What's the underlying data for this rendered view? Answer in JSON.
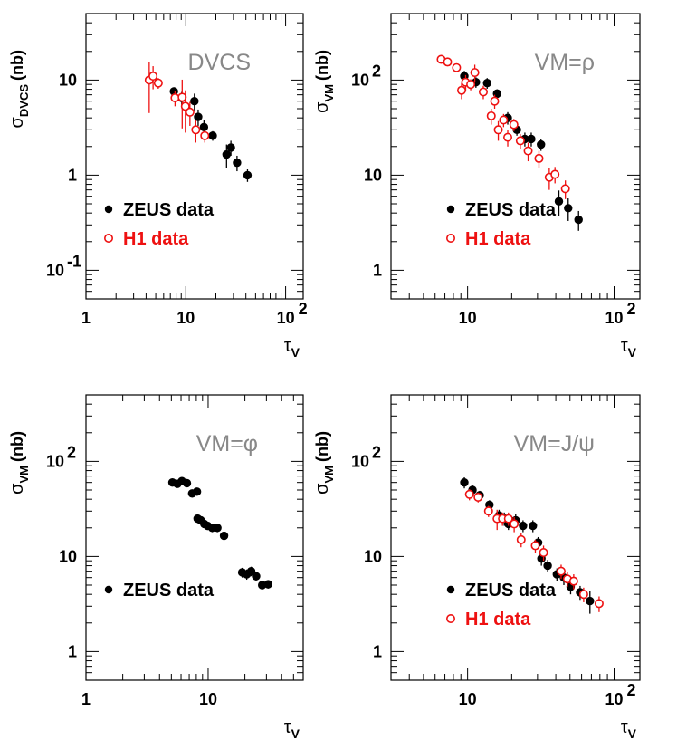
{
  "chart_data": [
    {
      "type": "scatter",
      "log_x": true,
      "log_y": true,
      "xlabel": "τV",
      "ylabel": "σDVCS (nb)",
      "annotation": "DVCS",
      "xlim": [
        1,
        150
      ],
      "ylim": [
        0.05,
        50
      ],
      "x_ticks": [
        {
          "v": 1,
          "t": "1"
        },
        {
          "v": 10,
          "t": "10"
        },
        {
          "v": 100,
          "t": "10",
          "sup": "2"
        }
      ],
      "y_ticks": [
        {
          "v": 0.1,
          "t": "10",
          "sup": "-1"
        },
        {
          "v": 1,
          "t": "1"
        },
        {
          "v": 10,
          "t": "10"
        }
      ],
      "series": [
        {
          "name": "ZEUS data",
          "color": "#000000",
          "marker": "filled",
          "points": [
            [
              7.6,
              7.6,
              0.8
            ],
            [
              9.1,
              6.5,
              1.0
            ],
            [
              12.2,
              6.0,
              1.2
            ],
            [
              13.3,
              4.1,
              0.8
            ],
            [
              15.2,
              3.2,
              0.6
            ],
            [
              18.6,
              2.6,
              0.3
            ],
            [
              25.6,
              1.65,
              0.45
            ],
            [
              28.3,
              1.95,
              0.35
            ],
            [
              32.6,
              1.35,
              0.25
            ],
            [
              41.5,
              1.0,
              0.15
            ]
          ]
        },
        {
          "name": "H1 data",
          "color": "#ee1111",
          "marker": "open",
          "points": [
            [
              4.3,
              10.0,
              5.5
            ],
            [
              4.7,
              11.0,
              3.0
            ],
            [
              5.3,
              9.3,
              1.2
            ],
            [
              7.8,
              6.5,
              1.2
            ],
            [
              9.2,
              6.6,
              3.5
            ],
            [
              9.9,
              5.3,
              2.5
            ],
            [
              11.0,
              4.6,
              1.3
            ],
            [
              12.6,
              3.0,
              0.8
            ],
            [
              15.5,
              2.6,
              0.4
            ]
          ]
        }
      ]
    },
    {
      "type": "scatter",
      "log_x": true,
      "log_y": true,
      "xlabel": "τV",
      "ylabel": "σVM (nb)",
      "annotation": "VM=ρ",
      "xlim": [
        3,
        150
      ],
      "ylim": [
        0.5,
        500
      ],
      "x_ticks": [
        {
          "v": 10,
          "t": "10"
        },
        {
          "v": 100,
          "t": "10",
          "sup": "2"
        }
      ],
      "y_ticks": [
        {
          "v": 1,
          "t": "1"
        },
        {
          "v": 10,
          "t": "10"
        },
        {
          "v": 100,
          "t": "10",
          "sup": "2"
        }
      ],
      "series": [
        {
          "name": "ZEUS data",
          "color": "#000000",
          "marker": "filled",
          "points": [
            [
              9.5,
              110,
              15
            ],
            [
              11.4,
              95,
              12
            ],
            [
              13.6,
              93,
              12
            ],
            [
              15.9,
              72,
              8
            ],
            [
              18.8,
              40,
              6
            ],
            [
              21.7,
              30,
              4
            ],
            [
              24.6,
              24,
              4
            ],
            [
              27.2,
              24,
              4
            ],
            [
              31.7,
              21,
              3
            ],
            [
              42,
              5.3,
              1.6
            ],
            [
              48.6,
              4.5,
              1.2
            ],
            [
              57.2,
              3.4,
              0.8
            ]
          ]
        },
        {
          "name": "H1 data",
          "color": "#ee1111",
          "marker": "open",
          "points": [
            [
              6.6,
              165,
              12
            ],
            [
              7.3,
              155,
              10
            ],
            [
              8.4,
              135,
              12
            ],
            [
              9.1,
              78,
              15
            ],
            [
              9.7,
              95,
              18
            ],
            [
              10.5,
              90,
              12
            ],
            [
              11.2,
              120,
              25
            ],
            [
              12.8,
              75,
              12
            ],
            [
              14.5,
              42,
              8
            ],
            [
              15.3,
              60,
              10
            ],
            [
              16.2,
              30,
              7
            ],
            [
              17.6,
              38,
              6
            ],
            [
              18.8,
              25,
              5
            ],
            [
              20.7,
              34,
              5
            ],
            [
              22.9,
              23,
              4
            ],
            [
              25.9,
              18,
              4
            ],
            [
              30.7,
              15,
              3
            ],
            [
              36.1,
              9.5,
              2.5
            ],
            [
              39.5,
              10.2,
              2.0
            ],
            [
              46.5,
              7.2,
              1.6
            ]
          ]
        }
      ]
    },
    {
      "type": "scatter",
      "log_x": true,
      "log_y": true,
      "xlabel": "τV",
      "ylabel": "σVM (nb)",
      "annotation": "VM=φ",
      "xlim": [
        1,
        60
      ],
      "ylim": [
        0.5,
        500
      ],
      "x_ticks": [
        {
          "v": 1,
          "t": "1"
        },
        {
          "v": 10,
          "t": "10"
        }
      ],
      "y_ticks": [
        {
          "v": 1,
          "t": "1"
        },
        {
          "v": 10,
          "t": "10"
        },
        {
          "v": 100,
          "t": "10",
          "sup": "2"
        }
      ],
      "series": [
        {
          "name": "ZEUS data",
          "color": "#000000",
          "marker": "filled",
          "points": [
            [
              5.1,
              60,
              4
            ],
            [
              5.6,
              58,
              4
            ],
            [
              6.1,
              62,
              5
            ],
            [
              6.7,
              59,
              4
            ],
            [
              7.4,
              46,
              4
            ],
            [
              8.1,
              48,
              4
            ],
            [
              8.2,
              25,
              2.5
            ],
            [
              8.7,
              24,
              2
            ],
            [
              9.3,
              22,
              2
            ],
            [
              9.9,
              21,
              2
            ],
            [
              10.8,
              20,
              2
            ],
            [
              11.9,
              20,
              2
            ],
            [
              13.5,
              16.5,
              1.5
            ],
            [
              19,
              6.8,
              0.8
            ],
            [
              20.7,
              6.5,
              0.8
            ],
            [
              22.5,
              7.0,
              0.8
            ],
            [
              24.7,
              6.2,
              0.7
            ],
            [
              27.7,
              5.0,
              0.5
            ],
            [
              31.0,
              5.1,
              0.5
            ]
          ]
        }
      ]
    },
    {
      "type": "scatter",
      "log_x": true,
      "log_y": true,
      "xlabel": "τV",
      "ylabel": "σVM (nb)",
      "annotation": "VM=J/ψ",
      "xlim": [
        3,
        150
      ],
      "ylim": [
        0.5,
        500
      ],
      "x_ticks": [
        {
          "v": 10,
          "t": "10"
        },
        {
          "v": 100,
          "t": "10",
          "sup": "2"
        }
      ],
      "y_ticks": [
        {
          "v": 1,
          "t": "1"
        },
        {
          "v": 10,
          "t": "10"
        },
        {
          "v": 100,
          "t": "10",
          "sup": "2"
        }
      ],
      "series": [
        {
          "name": "ZEUS data",
          "color": "#000000",
          "marker": "filled",
          "points": [
            [
              9.5,
              60,
              8
            ],
            [
              10.8,
              50,
              6
            ],
            [
              12.1,
              44,
              5
            ],
            [
              14.1,
              35,
              4
            ],
            [
              16.4,
              27,
              4
            ],
            [
              17.8,
              25,
              4
            ],
            [
              19.0,
              22,
              3
            ],
            [
              21.3,
              24,
              4
            ],
            [
              23.9,
              21,
              3
            ],
            [
              27.9,
              21,
              3
            ],
            [
              30.3,
              14,
              2
            ],
            [
              31.9,
              9.5,
              1.5
            ],
            [
              35.2,
              8,
              1.2
            ],
            [
              40.7,
              6.5,
              1.0
            ],
            [
              45.4,
              6.0,
              1.0
            ],
            [
              50.5,
              4.8,
              0.8
            ],
            [
              58.6,
              4.2,
              0.7
            ],
            [
              68.4,
              3.4,
              0.9
            ]
          ]
        },
        {
          "name": "H1 data",
          "color": "#ee1111",
          "marker": "open",
          "points": [
            [
              10.3,
              45,
              6
            ],
            [
              11.8,
              42,
              5
            ],
            [
              13.9,
              30,
              4
            ],
            [
              15.9,
              25,
              6
            ],
            [
              17.3,
              25,
              4
            ],
            [
              19.0,
              25,
              4
            ],
            [
              20.8,
              22,
              4
            ],
            [
              23.2,
              15,
              2.5
            ],
            [
              29.0,
              13,
              2
            ],
            [
              33.0,
              11,
              2
            ],
            [
              43.5,
              7.0,
              1.2
            ],
            [
              48.0,
              5.8,
              1.0
            ],
            [
              53.0,
              5.5,
              1.0
            ],
            [
              62.0,
              4.0,
              0.7
            ],
            [
              79.0,
              3.2,
              0.6
            ]
          ]
        }
      ]
    }
  ]
}
